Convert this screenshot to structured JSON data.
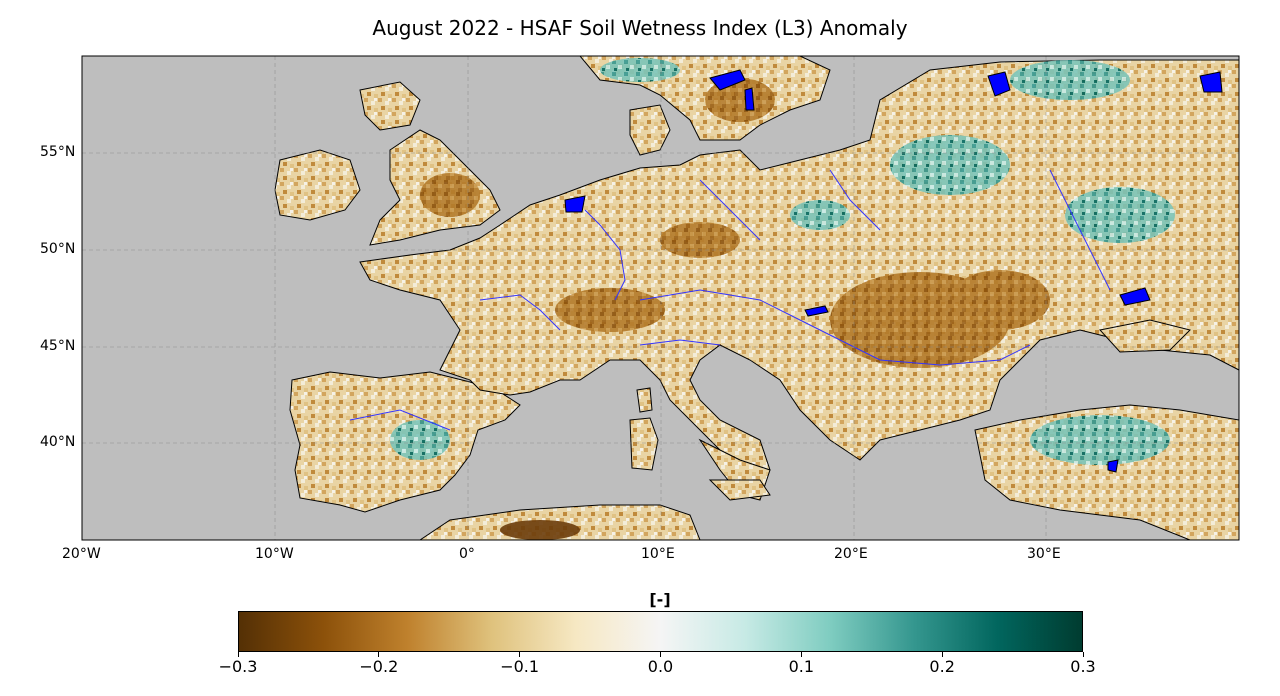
{
  "title": "August 2022 - HSAF Soil Wetness Index (L3) Anomaly",
  "map": {
    "projection": "PlateCarree",
    "extent_lon": [
      -20,
      40
    ],
    "extent_lat": [
      35,
      60
    ],
    "ocean_color": "#bebebe",
    "lake_color": "#0000ff",
    "river_color": "#3333ff",
    "lat_ticks": [
      {
        "value": 55,
        "label": "55°N"
      },
      {
        "value": 50,
        "label": "50°N"
      },
      {
        "value": 45,
        "label": "45°N"
      },
      {
        "value": 40,
        "label": "40°N"
      }
    ],
    "lon_ticks": [
      {
        "value": -20,
        "label": "20°W"
      },
      {
        "value": -10,
        "label": "10°W"
      },
      {
        "value": 0,
        "label": "0°"
      },
      {
        "value": 10,
        "label": "10°E"
      },
      {
        "value": 20,
        "label": "20°E"
      },
      {
        "value": 30,
        "label": "30°E"
      }
    ],
    "gridlines": true
  },
  "colorbar": {
    "label": "[-]",
    "cmap": "BrBG",
    "range": [
      -0.3,
      0.3
    ],
    "ticks": [
      {
        "value": -0.3,
        "label": "−0.3"
      },
      {
        "value": -0.2,
        "label": "−0.2"
      },
      {
        "value": -0.1,
        "label": "−0.1"
      },
      {
        "value": 0.0,
        "label": "0.0"
      },
      {
        "value": 0.1,
        "label": "0.1"
      },
      {
        "value": 0.2,
        "label": "0.2"
      },
      {
        "value": 0.3,
        "label": "0.3"
      }
    ],
    "colors": [
      "#543005",
      "#8c510a",
      "#bf812d",
      "#dfc27d",
      "#f6e8c3",
      "#f5f5f5",
      "#c7eae5",
      "#80cdc1",
      "#35978f",
      "#01665e",
      "#003c30"
    ]
  }
}
